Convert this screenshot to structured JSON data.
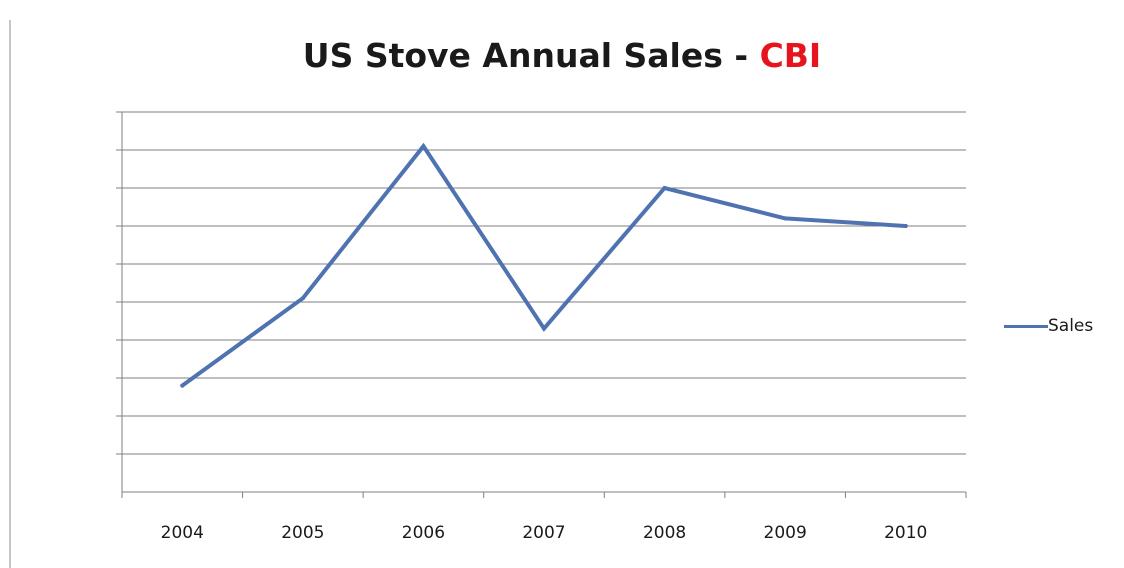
{
  "chart_data": {
    "type": "line",
    "title_main": "US Stove Annual Sales - ",
    "title_accent": "CBI",
    "categories": [
      "2004",
      "2005",
      "2006",
      "2007",
      "2008",
      "2009",
      "2010"
    ],
    "series": [
      {
        "name": "Sales",
        "values": [
          2.8,
          5.1,
          9.1,
          4.3,
          8.0,
          7.2,
          7.0
        ]
      }
    ],
    "ylim": [
      0,
      10
    ],
    "grid": true,
    "legend_position": "right",
    "y_tick_labels": "obscured",
    "colors": {
      "series": "#4f72b1",
      "title": "#1a1a1a",
      "accent": "#e8141d",
      "grid": "#7f7f7f"
    }
  }
}
